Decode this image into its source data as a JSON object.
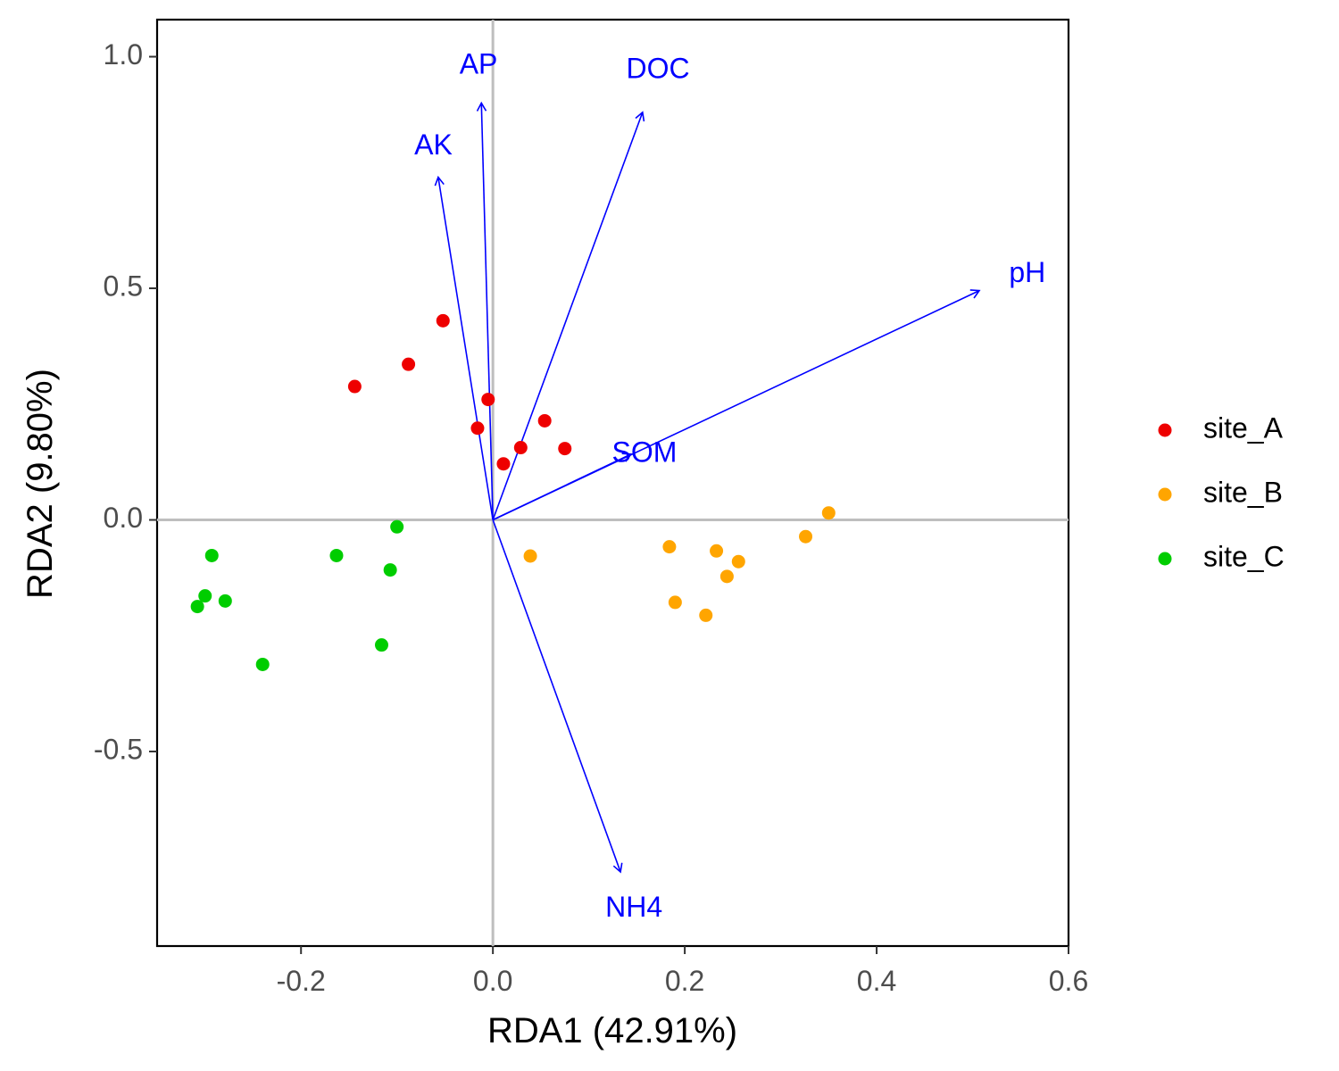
{
  "chart_data": {
    "type": "scatter",
    "subtype": "rda-biplot",
    "title": "",
    "xlabel": "RDA1 (42.91%)",
    "ylabel": "RDA2 (9.80%)",
    "xlim": [
      -0.35,
      0.6
    ],
    "ylim": [
      -0.92,
      1.08
    ],
    "x_ticks": [
      -0.2,
      0.0,
      0.2,
      0.4,
      0.6
    ],
    "x_tick_labels": [
      "-0.2",
      "0.0",
      "0.2",
      "0.4",
      "0.6"
    ],
    "y_ticks": [
      -0.5,
      0.0,
      0.5,
      1.0
    ],
    "y_tick_labels": [
      "-0.5",
      "0.0",
      "0.5",
      "1.0"
    ],
    "reference_lines": {
      "x": 0,
      "y": 0,
      "color": "#bebebe"
    },
    "grid": false,
    "legend_position": "right",
    "series": [
      {
        "name": "site_A",
        "color": "#ee0000",
        "points": [
          {
            "x": -0.052,
            "y": 0.43
          },
          {
            "x": -0.088,
            "y": 0.336
          },
          {
            "x": -0.144,
            "y": 0.288
          },
          {
            "x": -0.005,
            "y": 0.26
          },
          {
            "x": -0.016,
            "y": 0.198
          },
          {
            "x": 0.054,
            "y": 0.214
          },
          {
            "x": 0.029,
            "y": 0.156
          },
          {
            "x": 0.075,
            "y": 0.154
          },
          {
            "x": 0.011,
            "y": 0.121
          }
        ]
      },
      {
        "name": "site_B",
        "color": "#ffa500",
        "points": [
          {
            "x": 0.35,
            "y": 0.015
          },
          {
            "x": 0.326,
            "y": -0.036
          },
          {
            "x": 0.184,
            "y": -0.058
          },
          {
            "x": 0.233,
            "y": -0.067
          },
          {
            "x": 0.256,
            "y": -0.09
          },
          {
            "x": 0.244,
            "y": -0.122
          },
          {
            "x": 0.039,
            "y": -0.078
          },
          {
            "x": 0.19,
            "y": -0.178
          },
          {
            "x": 0.222,
            "y": -0.206
          }
        ]
      },
      {
        "name": "site_C",
        "color": "#00cd00",
        "points": [
          {
            "x": -0.1,
            "y": -0.015
          },
          {
            "x": -0.163,
            "y": -0.077
          },
          {
            "x": -0.293,
            "y": -0.077
          },
          {
            "x": -0.107,
            "y": -0.108
          },
          {
            "x": -0.3,
            "y": -0.164
          },
          {
            "x": -0.279,
            "y": -0.175
          },
          {
            "x": -0.308,
            "y": -0.187
          },
          {
            "x": -0.116,
            "y": -0.27
          },
          {
            "x": -0.24,
            "y": -0.312
          }
        ]
      }
    ],
    "arrows": [
      {
        "name": "AP",
        "x": -0.012,
        "y": 0.9,
        "label_x": -0.015,
        "label_y": 0.98
      },
      {
        "name": "DOC",
        "x": 0.156,
        "y": 0.88,
        "label_x": 0.172,
        "label_y": 0.97
      },
      {
        "name": "AK",
        "x": -0.057,
        "y": 0.74,
        "label_x": -0.062,
        "label_y": 0.805
      },
      {
        "name": "pH",
        "x": 0.507,
        "y": 0.495,
        "label_x": 0.557,
        "label_y": 0.53
      },
      {
        "name": "SOM",
        "x": 0.144,
        "y": 0.142,
        "label_x": 0.158,
        "label_y": 0.142
      },
      {
        "name": "NH4",
        "x": 0.133,
        "y": -0.76,
        "label_x": 0.147,
        "label_y": -0.84
      }
    ],
    "arrow_color": "#0000ff",
    "label_color": "#0000ff"
  }
}
